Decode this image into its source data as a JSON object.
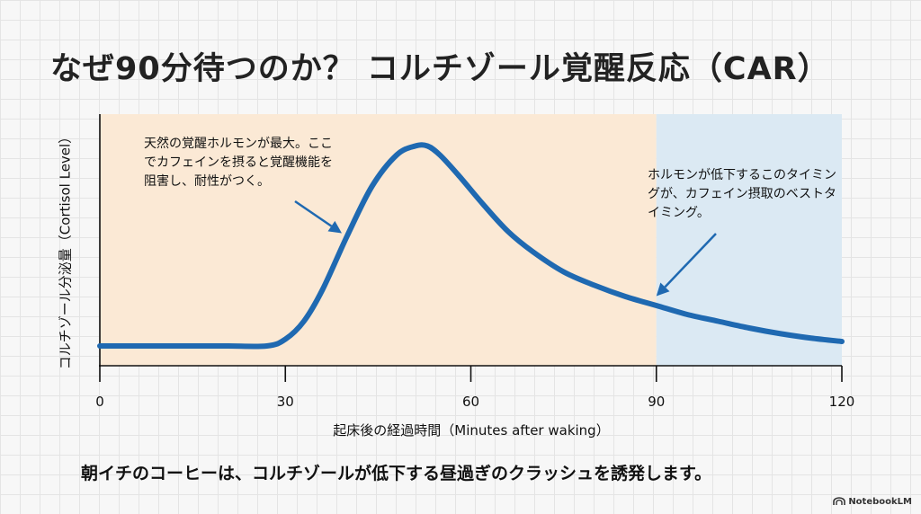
{
  "title": "なぜ90分待つのか？ コルチゾール覚醒反応（CAR）",
  "bottom_text": "朝イチのコーヒーは、コルチゾールが低下する昼過ぎのクラッシュを誘発します。",
  "brand": "NotebookLM",
  "colors": {
    "curve": "#1f69b1",
    "zone_early": "#fbe9d5",
    "zone_late": "#dbe9f3",
    "arrow": "#1f69b1"
  },
  "chart_data": {
    "type": "line",
    "title": "",
    "xlabel": "起床後の経過時間（Minutes after waking）",
    "ylabel": "コルチゾール分泌量（Cortisol Level）",
    "xlim": [
      0,
      120
    ],
    "ylim": [
      0,
      10
    ],
    "xticks": [
      "0",
      "30",
      "60",
      "90",
      "120"
    ],
    "series": [
      {
        "name": "Cortisol",
        "x": [
          0,
          10,
          20,
          27,
          30,
          33,
          36,
          40,
          44,
          48,
          51,
          53,
          55,
          58,
          62,
          66,
          70,
          75,
          80,
          85,
          90,
          95,
          100,
          105,
          110,
          115,
          120
        ],
        "y": [
          0.4,
          0.4,
          0.4,
          0.4,
          0.7,
          1.5,
          2.9,
          5.3,
          7.5,
          8.9,
          9.3,
          9.3,
          8.9,
          8.0,
          6.7,
          5.5,
          4.6,
          3.7,
          3.1,
          2.6,
          2.2,
          1.8,
          1.5,
          1.2,
          0.95,
          0.75,
          0.6
        ]
      }
    ],
    "zones": [
      {
        "name": "early",
        "from": 0,
        "to": 90
      },
      {
        "name": "optimal",
        "from": 90,
        "to": 120
      }
    ],
    "annotations": [
      {
        "text": "天然の覚醒ホルモンが最大。ここでカフェインを摂ると覚醒機能を阻害し、耐性がつく。",
        "arrow_to": [
          40,
          5.3
        ]
      },
      {
        "text": "ホルモンが低下するこのタイミングが、カフェイン摂取のベストタイミング。",
        "arrow_to": [
          90,
          2.3
        ]
      }
    ]
  }
}
